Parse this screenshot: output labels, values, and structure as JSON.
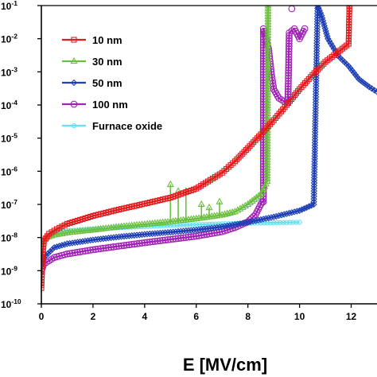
{
  "chart_data": {
    "type": "line",
    "title": "",
    "xlabel": "E [MV/cm]",
    "ylabel": "",
    "xlim": [
      0,
      13
    ],
    "ylim": [
      1e-10,
      0.1
    ],
    "y_scale": "log",
    "grid": false,
    "legend": "top-left",
    "x_ticks": [
      0,
      2,
      4,
      6,
      8,
      10,
      12
    ],
    "x_tick_labels": [
      "0",
      "2",
      "4",
      "6",
      "8",
      "10",
      "12"
    ],
    "y_ticks": [
      1e-10,
      1e-09,
      1e-08,
      1e-07,
      1e-06,
      1e-05,
      0.0001,
      0.001,
      0.01,
      0.1
    ],
    "y_tick_labels": [
      {
        "base": "10",
        "exp": "-10"
      },
      {
        "base": "10",
        "exp": "-9"
      },
      {
        "base": "10",
        "exp": "-8"
      },
      {
        "base": "10",
        "exp": "-7"
      },
      {
        "base": "10",
        "exp": "-6"
      },
      {
        "base": "10",
        "exp": "-5"
      },
      {
        "base": "10",
        "exp": "-4"
      },
      {
        "base": "10",
        "exp": "-3"
      },
      {
        "base": "10",
        "exp": "-2"
      },
      {
        "base": "10",
        "exp": "-1"
      }
    ],
    "series": [
      {
        "name": "10 nm",
        "color": "#e31a1c",
        "marker": "square",
        "points": [
          [
            0,
            3e-10
          ],
          [
            0.05,
            3e-09
          ],
          [
            0.1,
            8e-09
          ],
          [
            0.3,
            1.3e-08
          ],
          [
            0.6,
            1.8e-08
          ],
          [
            1,
            2.6e-08
          ],
          [
            2,
            4.5e-08
          ],
          [
            3,
            7e-08
          ],
          [
            4,
            1.05e-07
          ],
          [
            5,
            1.6e-07
          ],
          [
            6,
            3e-07
          ],
          [
            7,
            9e-07
          ],
          [
            7.5,
            2e-06
          ],
          [
            8,
            5e-06
          ],
          [
            8.5,
            1.3e-05
          ],
          [
            9,
            3.5e-05
          ],
          [
            9.5,
            0.0001
          ],
          [
            10,
            0.0003
          ],
          [
            10.5,
            0.0008
          ],
          [
            11,
            0.002
          ],
          [
            11.5,
            0.004
          ],
          [
            11.9,
            0.007
          ],
          [
            11.93,
            0.1
          ]
        ]
      },
      {
        "name": "30 nm",
        "color": "#6abf3c",
        "marker": "triangle",
        "points": [
          [
            0,
            7e-09
          ],
          [
            0.2,
            1e-08
          ],
          [
            0.5,
            1.2e-08
          ],
          [
            1,
            1.4e-08
          ],
          [
            2,
            1.7e-08
          ],
          [
            3,
            2.1e-08
          ],
          [
            4,
            2.5e-08
          ],
          [
            5,
            3e-08
          ],
          [
            6,
            3.7e-08
          ],
          [
            7,
            4.8e-08
          ],
          [
            7.5,
            6e-08
          ],
          [
            8,
            1e-07
          ],
          [
            8.5,
            2e-07
          ],
          [
            8.75,
            5e-07
          ],
          [
            8.78,
            0.1
          ]
        ],
        "spikes": [
          [
            5,
            4e-07
          ],
          [
            5.3,
            2.5e-07
          ],
          [
            5.6,
            2.5e-07
          ],
          [
            6.2,
            1e-07
          ],
          [
            6.5,
            8e-08
          ],
          [
            6.9,
            1.2e-07
          ]
        ]
      },
      {
        "name": "50 nm",
        "color": "#1f3fb5",
        "marker": "diamond",
        "points": [
          [
            0,
            1.5e-09
          ],
          [
            0.1,
            2.5e-09
          ],
          [
            0.5,
            5e-09
          ],
          [
            1,
            6.5e-09
          ],
          [
            2,
            8.5e-09
          ],
          [
            3,
            1.05e-08
          ],
          [
            4,
            1.25e-08
          ],
          [
            5,
            1.45e-08
          ],
          [
            6,
            1.7e-08
          ],
          [
            7,
            2.1e-08
          ],
          [
            8,
            2.9e-08
          ],
          [
            9,
            4.2e-08
          ],
          [
            10,
            6.5e-08
          ],
          [
            10.55,
            1e-07
          ],
          [
            10.7,
            0.1
          ],
          [
            10.85,
            0.05
          ],
          [
            11.1,
            0.01
          ],
          [
            11.5,
            0.003
          ],
          [
            11.9,
            0.0015
          ],
          [
            12.3,
            0.0006
          ],
          [
            12.7,
            0.00035
          ],
          [
            13,
            0.00025
          ]
        ]
      },
      {
        "name": "100 nm",
        "color": "#a120b5",
        "marker": "circle",
        "points": [
          [
            0,
            1e-09
          ],
          [
            0.1,
            1.6e-09
          ],
          [
            0.5,
            2.5e-09
          ],
          [
            1,
            3.2e-09
          ],
          [
            2,
            4.3e-09
          ],
          [
            3,
            5.5e-09
          ],
          [
            4,
            7e-09
          ],
          [
            5,
            8.8e-09
          ],
          [
            6,
            1.1e-08
          ],
          [
            7,
            1.5e-08
          ],
          [
            7.5,
            2e-08
          ],
          [
            8,
            3e-08
          ],
          [
            8.3,
            5e-08
          ],
          [
            8.55,
            1.2e-07
          ],
          [
            8.6,
            1.2e-07
          ],
          [
            8.6,
            0.02
          ],
          [
            8.7,
            0.01
          ],
          [
            8.8,
            0.005
          ],
          [
            8.9,
            0.001
          ],
          [
            9,
            0.0003
          ],
          [
            9.2,
            0.00016
          ],
          [
            9.4,
            0.00013
          ],
          [
            9.55,
            0.00012
          ],
          [
            9.6,
            0.015
          ],
          [
            9.8,
            0.02
          ],
          [
            10,
            0.01
          ],
          [
            10.2,
            0.02
          ]
        ],
        "top_outliers": [
          [
            9.7,
            0.08
          ]
        ]
      },
      {
        "name": "Furnace oxide",
        "color": "#66e0f0",
        "marker": "circle-small",
        "points": [
          [
            0,
            8e-09
          ],
          [
            0.3,
            1.2e-08
          ],
          [
            0.6,
            1.45e-08
          ],
          [
            1,
            1.6e-08
          ],
          [
            2,
            1.8e-08
          ],
          [
            3,
            2e-08
          ],
          [
            4,
            2.15e-08
          ],
          [
            5,
            2.3e-08
          ],
          [
            6,
            2.45e-08
          ],
          [
            7,
            2.6e-08
          ],
          [
            8,
            2.7e-08
          ],
          [
            9,
            2.8e-08
          ],
          [
            10,
            2.9e-08
          ]
        ]
      }
    ]
  }
}
